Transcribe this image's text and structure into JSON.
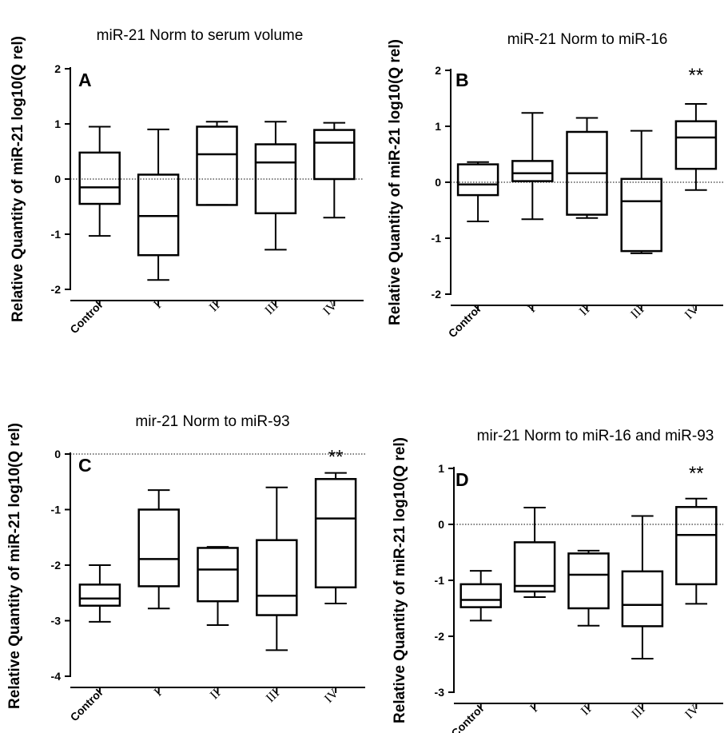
{
  "chart_data": [
    {
      "type": "box",
      "panel_label": "A",
      "title": "miR-21 Norm to serum volume",
      "ylabel": "Relative Quantity of miR-21 log10(Q rel)",
      "categories": [
        "Control",
        "I",
        "II",
        "III",
        "IV"
      ],
      "ylim": [
        -2,
        2
      ],
      "yticks": [
        "2",
        "1",
        "0",
        "-1",
        "-2"
      ],
      "reference_line": 0,
      "boxes": [
        {
          "min": -1.03,
          "q1": -0.45,
          "median": -0.15,
          "q3": 0.48,
          "max": 0.95
        },
        {
          "min": -1.83,
          "q1": -1.38,
          "median": -0.67,
          "q3": 0.08,
          "max": 0.9
        },
        {
          "min": -0.47,
          "q1": -0.47,
          "median": 0.45,
          "q3": 0.95,
          "max": 1.04
        },
        {
          "min": -1.28,
          "q1": -0.62,
          "median": 0.3,
          "q3": 0.63,
          "max": 1.04
        },
        {
          "min": -0.7,
          "q1": 0.0,
          "median": 0.66,
          "q3": 0.89,
          "max": 1.02
        }
      ],
      "significance": []
    },
    {
      "type": "box",
      "panel_label": "B",
      "title": "miR-21 Norm to miR-16",
      "ylabel": "Relative Quantity of miR-21 log10(Q rel)",
      "categories": [
        "Control",
        "I",
        "II",
        "III",
        "IV"
      ],
      "ylim": [
        -2,
        2
      ],
      "yticks": [
        "2",
        "1",
        "0",
        "-1",
        "-2"
      ],
      "reference_line": 0,
      "boxes": [
        {
          "min": -0.7,
          "q1": -0.23,
          "median": -0.04,
          "q3": 0.32,
          "max": 0.36
        },
        {
          "min": -0.66,
          "q1": 0.02,
          "median": 0.16,
          "q3": 0.38,
          "max": 1.24
        },
        {
          "min": -0.64,
          "q1": -0.58,
          "median": 0.16,
          "q3": 0.9,
          "max": 1.15
        },
        {
          "min": -1.27,
          "q1": -1.23,
          "median": -0.34,
          "q3": 0.06,
          "max": 0.92
        },
        {
          "min": -0.14,
          "q1": 0.24,
          "median": 0.8,
          "q3": 1.09,
          "max": 1.4
        }
      ],
      "significance": [
        {
          "category": "IV",
          "text": "**"
        }
      ]
    },
    {
      "type": "box",
      "panel_label": "C",
      "title": "mir-21 Norm to miR-93",
      "ylabel": "Relative Quantity of miR-21 log10(Q rel)",
      "categories": [
        "Control",
        "I",
        "II",
        "III",
        "IV"
      ],
      "ylim": [
        -4,
        0
      ],
      "yticks": [
        "0",
        "-1",
        "-2",
        "-3",
        "-4"
      ],
      "reference_line": 0,
      "boxes": [
        {
          "min": -3.02,
          "q1": -2.73,
          "median": -2.6,
          "q3": -2.35,
          "max": -2.0
        },
        {
          "min": -2.78,
          "q1": -2.38,
          "median": -1.89,
          "q3": -1.0,
          "max": -0.65
        },
        {
          "min": -3.08,
          "q1": -2.65,
          "median": -2.08,
          "q3": -1.69,
          "max": -1.67
        },
        {
          "min": -3.53,
          "q1": -2.9,
          "median": -2.55,
          "q3": -1.55,
          "max": -0.6
        },
        {
          "min": -2.69,
          "q1": -2.4,
          "median": -1.16,
          "q3": -0.45,
          "max": -0.34
        }
      ],
      "significance": [
        {
          "category": "IV",
          "text": "**"
        }
      ]
    },
    {
      "type": "box",
      "panel_label": "D",
      "title": "mir-21 Norm to miR-16 and miR-93",
      "ylabel": "Relative Quantity of miR-21 log10(Q rel)",
      "categories": [
        "Control",
        "I",
        "II",
        "III",
        "IV"
      ],
      "ylim": [
        -3,
        1
      ],
      "yticks": [
        "1",
        "0",
        "-1",
        "-2",
        "-3"
      ],
      "reference_line": 0,
      "boxes": [
        {
          "min": -1.72,
          "q1": -1.48,
          "median": -1.35,
          "q3": -1.07,
          "max": -0.83
        },
        {
          "min": -1.3,
          "q1": -1.2,
          "median": -1.1,
          "q3": -0.32,
          "max": 0.3
        },
        {
          "min": -1.81,
          "q1": -1.5,
          "median": -0.9,
          "q3": -0.52,
          "max": -0.47
        },
        {
          "min": -2.4,
          "q1": -1.82,
          "median": -1.44,
          "q3": -0.84,
          "max": 0.15
        },
        {
          "min": -1.42,
          "q1": -1.07,
          "median": -0.19,
          "q3": 0.31,
          "max": 0.46
        }
      ],
      "significance": [
        {
          "category": "IV",
          "text": "**"
        }
      ]
    }
  ]
}
